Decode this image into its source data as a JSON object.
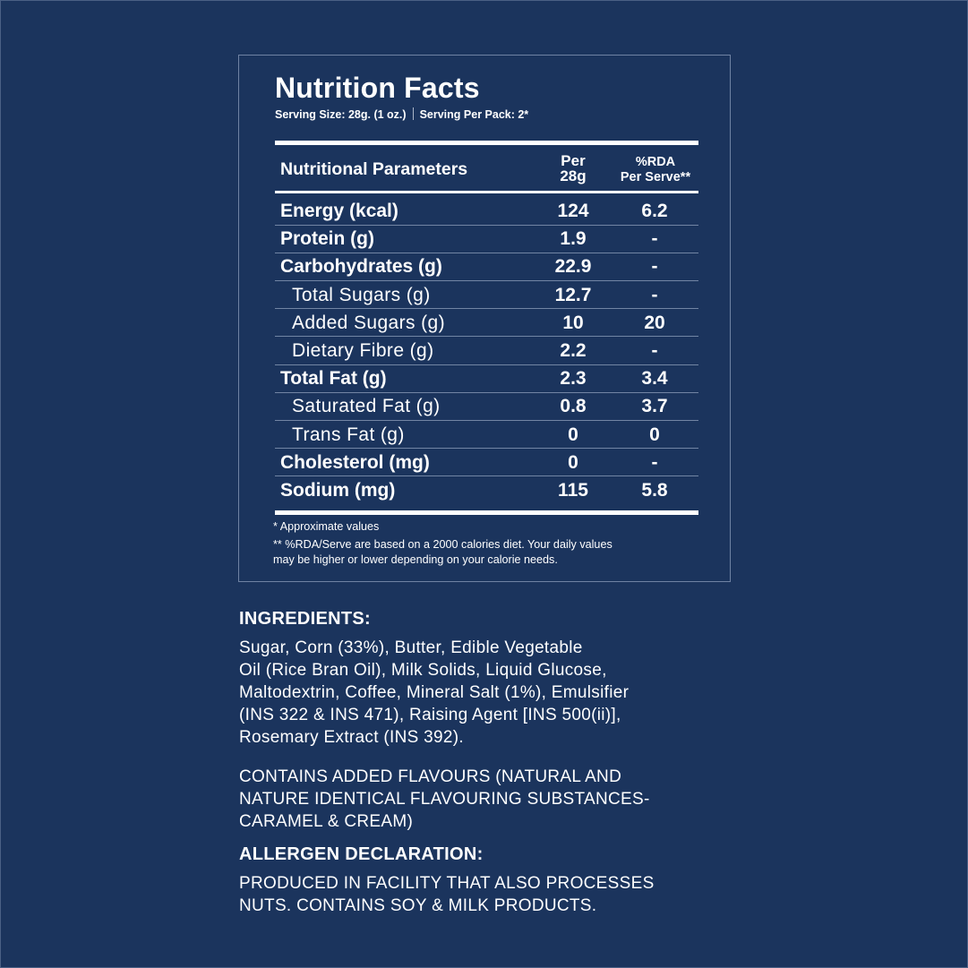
{
  "title": "Nutrition Facts",
  "serving_size": "Serving Size: 28g. (1 oz.)",
  "serving_per_pack": "Serving Per Pack: 2*",
  "table": {
    "headers": {
      "name": "Nutritional Parameters",
      "per_line1": "Per",
      "per_line2": "28g",
      "rda_line1": "%RDA",
      "rda_line2": "Per Serve**"
    },
    "rows": [
      {
        "name": "Energy (kcal)",
        "per": "124",
        "rda": "6.2",
        "sub": false
      },
      {
        "name": "Protein (g)",
        "per": "1.9",
        "rda": "-",
        "sub": false
      },
      {
        "name": "Carbohydrates (g)",
        "per": "22.9",
        "rda": "-",
        "sub": false
      },
      {
        "name": "Total Sugars (g)",
        "per": "12.7",
        "rda": "-",
        "sub": true
      },
      {
        "name": "Added Sugars (g)",
        "per": "10",
        "rda": "20",
        "sub": true
      },
      {
        "name": "Dietary Fibre (g)",
        "per": "2.2",
        "rda": "-",
        "sub": true
      },
      {
        "name": "Total Fat (g)",
        "per": "2.3",
        "rda": "3.4",
        "sub": false
      },
      {
        "name": "Saturated Fat (g)",
        "per": "0.8",
        "rda": "3.7",
        "sub": true
      },
      {
        "name": "Trans Fat (g)",
        "per": "0",
        "rda": "0",
        "sub": true
      },
      {
        "name": "Cholesterol (mg)",
        "per": "0",
        "rda": "-",
        "sub": false
      },
      {
        "name": "Sodium (mg)",
        "per": "115",
        "rda": "5.8",
        "sub": false
      }
    ]
  },
  "footnotes": [
    "* Approximate values",
    "** %RDA/Serve are based on a 2000 calories diet. Your daily values",
    "may be higher or lower depending on your calorie needs."
  ],
  "ingredients": {
    "heading": "INGREDIENTS:",
    "lines": [
      "Sugar, Corn (33%), Butter, Edible Vegetable",
      "Oil (Rice Bran Oil), Milk Solids, Liquid Glucose,",
      "Maltodextrin, Coffee, Mineral Salt (1%), Emulsifier",
      "(INS 322 & INS 471), Raising Agent [INS 500(ii)],",
      "Rosemary Extract (INS 392)."
    ],
    "flavours_lines": [
      "CONTAINS ADDED FLAVOURS (NATURAL AND",
      "NATURE IDENTICAL FLAVOURING SUBSTANCES-",
      "CARAMEL & CREAM)"
    ]
  },
  "allergen": {
    "heading": "ALLERGEN DECLARATION:",
    "lines": [
      "PRODUCED IN FACILITY THAT ALSO PROCESSES",
      "NUTS. CONTAINS SOY & MILK PRODUCTS."
    ]
  },
  "colors": {
    "background": "#1b345d",
    "text": "#ffffff",
    "divider": "#7285a4"
  }
}
